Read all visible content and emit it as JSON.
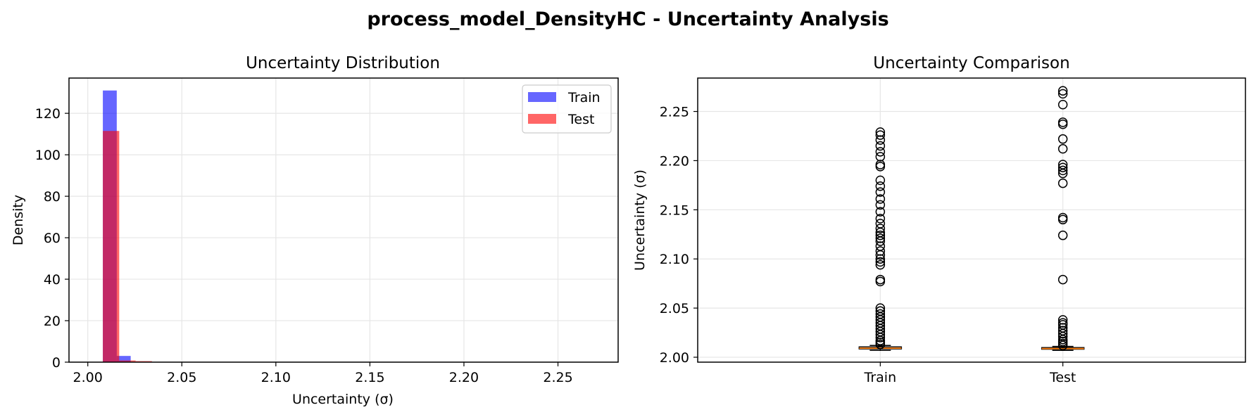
{
  "suptitle": "process_model_DensityHC - Uncertainty Analysis",
  "colors": {
    "train": "#0000ff",
    "test": "#ff0000",
    "median": "#ff7f0e",
    "grid": "#e6e6e6"
  },
  "chart_data": [
    {
      "type": "histogram",
      "title": "Uncertainty Distribution",
      "xlabel": "Uncertainty (σ)",
      "ylabel": "Density",
      "xlim": [
        1.99,
        2.282
      ],
      "ylim": [
        0,
        137
      ],
      "xticks": [
        2.0,
        2.05,
        2.1,
        2.15,
        2.2,
        2.25
      ],
      "xtick_labels": [
        "2.00",
        "2.05",
        "2.10",
        "2.15",
        "2.20",
        "2.25"
      ],
      "yticks": [
        0,
        20,
        40,
        60,
        80,
        100,
        120
      ],
      "ytick_labels": [
        "0",
        "20",
        "40",
        "60",
        "80",
        "100",
        "120"
      ],
      "grid": true,
      "legend": {
        "position": "top-right",
        "entries": [
          "Train",
          "Test"
        ]
      },
      "series": [
        {
          "name": "Train",
          "color": "#0000ff",
          "alpha": 0.6,
          "bins": [
            {
              "x0": 2.008,
              "x1": 2.0154,
              "value": 131
            },
            {
              "x0": 2.0154,
              "x1": 2.0228,
              "value": 3
            }
          ]
        },
        {
          "name": "Test",
          "color": "#ff0000",
          "alpha": 0.6,
          "bins": [
            {
              "x0": 2.008,
              "x1": 2.0167,
              "value": 111.5
            },
            {
              "x0": 2.0167,
              "x1": 2.0254,
              "value": 0.8
            },
            {
              "x0": 2.0254,
              "x1": 2.0341,
              "value": 0.5
            }
          ]
        }
      ]
    },
    {
      "type": "box",
      "title": "Uncertainty Comparison",
      "xlabel": "",
      "ylabel": "Uncertainty (σ)",
      "categories": [
        "Train",
        "Test"
      ],
      "ylim": [
        1.995,
        2.284
      ],
      "yticks": [
        2.0,
        2.05,
        2.1,
        2.15,
        2.2,
        2.25
      ],
      "ytick_labels": [
        "2.00",
        "2.05",
        "2.10",
        "2.15",
        "2.20",
        "2.25"
      ],
      "grid": true,
      "boxes": [
        {
          "name": "Train",
          "whislo": 2.007,
          "q1": 2.0085,
          "med": 2.0092,
          "q3": 2.0105,
          "whishi": 2.012,
          "fliers": [
            2.229,
            2.226,
            2.221,
            2.215,
            2.209,
            2.204,
            2.196,
            2.194,
            2.18,
            2.174,
            2.168,
            2.161,
            2.155,
            2.148,
            2.141,
            2.136,
            2.131,
            2.127,
            2.124,
            2.121,
            2.118,
            2.113,
            2.108,
            2.104,
            2.1,
            2.097,
            2.094,
            2.079,
            2.077,
            2.05,
            2.047,
            2.044,
            2.041,
            2.038,
            2.035,
            2.032,
            2.029,
            2.026,
            2.023,
            2.02,
            2.017,
            2.015,
            2.013
          ]
        },
        {
          "name": "Test",
          "whislo": 2.007,
          "q1": 2.0082,
          "med": 2.0088,
          "q3": 2.0098,
          "whishi": 2.011,
          "fliers": [
            2.271,
            2.268,
            2.257,
            2.239,
            2.237,
            2.222,
            2.212,
            2.196,
            2.193,
            2.19,
            2.187,
            2.177,
            2.142,
            2.14,
            2.124,
            2.079,
            2.038,
            2.035,
            2.033,
            2.03,
            2.027,
            2.024,
            2.021,
            2.018,
            2.016,
            2.014,
            2.012
          ]
        }
      ]
    }
  ]
}
